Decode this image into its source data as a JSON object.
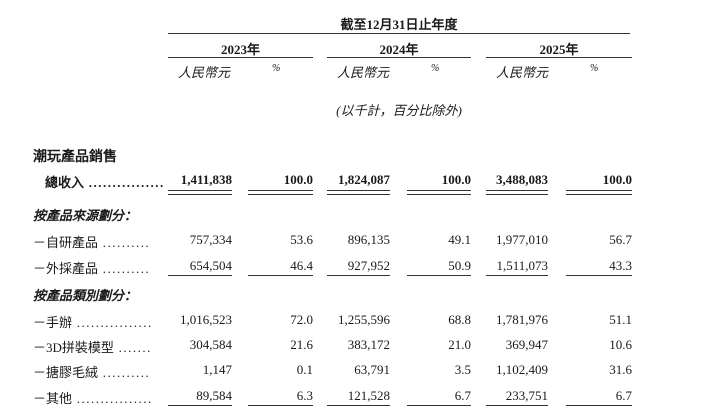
{
  "header": {
    "period": "截至12月31日止年度",
    "years": [
      "2023年",
      "2024年",
      "2025年"
    ],
    "currency": "人民幣元",
    "pct": "%",
    "note": "(以千計，百分比除外)"
  },
  "section_title": "潮玩產品銷售",
  "total": {
    "label": "總收入",
    "values": [
      "1,411,838",
      "100.0",
      "1,824,087",
      "100.0",
      "3,488,083",
      "100.0"
    ]
  },
  "groups": [
    {
      "title": "按產品來源劃分：",
      "rows": [
        {
          "label": "－自研產品",
          "values": [
            "757,334",
            "53.6",
            "896,135",
            "49.1",
            "1,977,010",
            "56.7"
          ]
        },
        {
          "label": "－外採產品",
          "values": [
            "654,504",
            "46.4",
            "927,952",
            "50.9",
            "1,511,073",
            "43.3"
          ]
        }
      ]
    },
    {
      "title": "按產品類別劃分：",
      "rows": [
        {
          "label": "－手辦",
          "values": [
            "1,016,523",
            "72.0",
            "1,255,596",
            "68.8",
            "1,781,976",
            "51.1"
          ]
        },
        {
          "label": "－3D拼裝模型",
          "values": [
            "304,584",
            "21.6",
            "383,172",
            "21.0",
            "369,947",
            "10.6"
          ]
        },
        {
          "label": "－搪膠毛絨",
          "values": [
            "1,147",
            "0.1",
            "63,791",
            "3.5",
            "1,102,409",
            "31.6"
          ]
        },
        {
          "label": "－其他",
          "values": [
            "89,584",
            "6.3",
            "121,528",
            "6.7",
            "233,751",
            "6.7"
          ]
        }
      ]
    }
  ]
}
